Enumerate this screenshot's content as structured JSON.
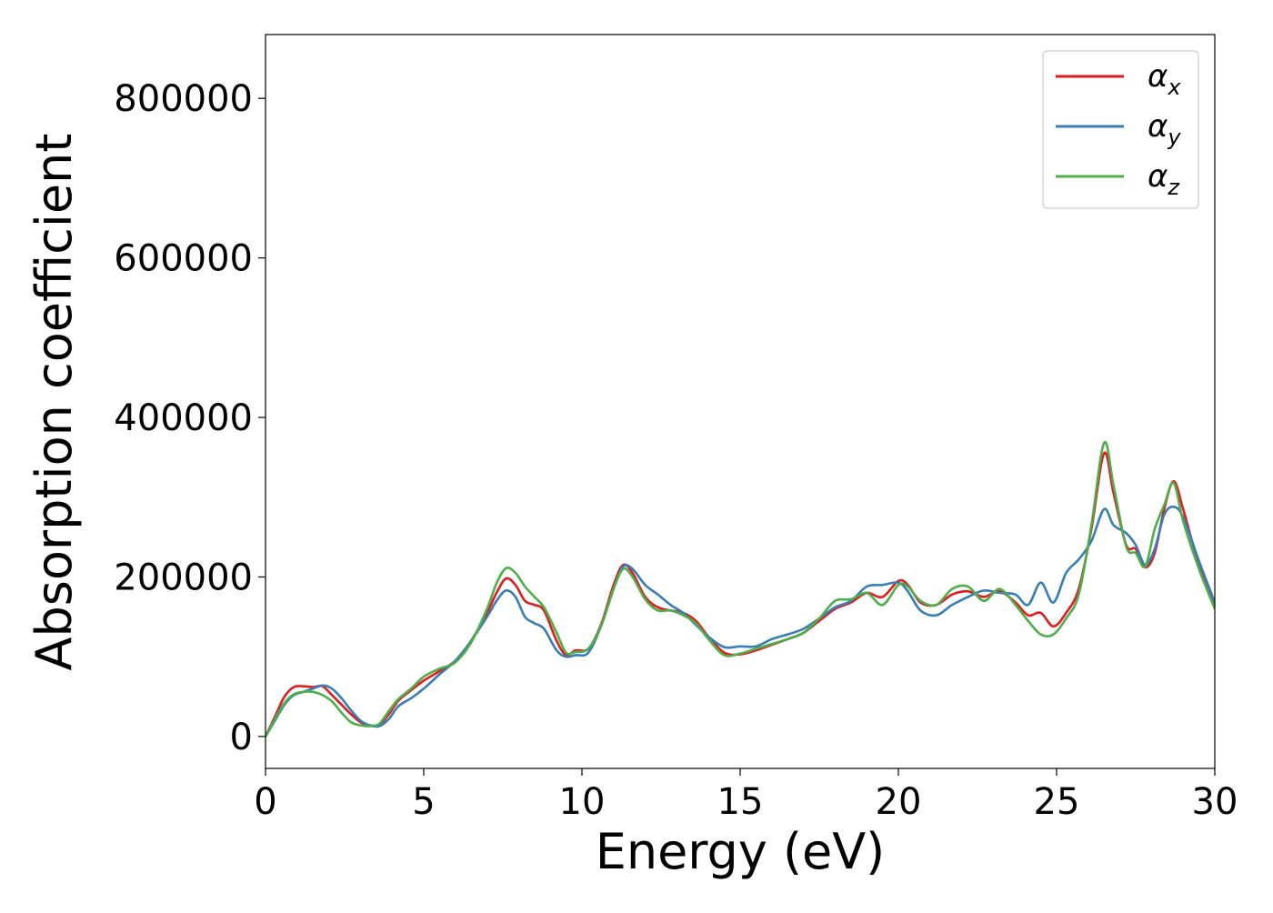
{
  "chart_data": {
    "type": "line",
    "title": "",
    "xlabel": "Energy (eV)",
    "ylabel": "Absorption coefficient",
    "xlim": [
      0,
      30
    ],
    "ylim": [
      -40000,
      880000
    ],
    "xticks": [
      0,
      5,
      10,
      15,
      20,
      25,
      30
    ],
    "xtick_labels": [
      "0",
      "5",
      "10",
      "15",
      "20",
      "25",
      "30"
    ],
    "yticks": [
      0,
      200000,
      400000,
      600000,
      800000
    ],
    "ytick_labels": [
      "0",
      "200000",
      "400000",
      "600000",
      "800000"
    ],
    "grid": false,
    "legend_position": "top-right",
    "series": [
      {
        "name": "αx",
        "symbol": "α",
        "subscript": "x",
        "color": "#e41a1c",
        "points": [
          [
            0,
            0
          ],
          [
            0.3,
            25000
          ],
          [
            0.6,
            50000
          ],
          [
            0.9,
            62000
          ],
          [
            1.2,
            63000
          ],
          [
            1.5,
            62000
          ],
          [
            1.8,
            63000
          ],
          [
            2.1,
            52000
          ],
          [
            2.4,
            40000
          ],
          [
            2.7,
            28000
          ],
          [
            3.0,
            18000
          ],
          [
            3.3,
            14000
          ],
          [
            3.6,
            15000
          ],
          [
            3.9,
            28000
          ],
          [
            4.2,
            45000
          ],
          [
            4.6,
            58000
          ],
          [
            5.0,
            70000
          ],
          [
            5.5,
            82000
          ],
          [
            6.0,
            95000
          ],
          [
            6.5,
            120000
          ],
          [
            7.0,
            155000
          ],
          [
            7.3,
            180000
          ],
          [
            7.6,
            198000
          ],
          [
            7.9,
            190000
          ],
          [
            8.2,
            170000
          ],
          [
            8.5,
            165000
          ],
          [
            8.8,
            158000
          ],
          [
            9.2,
            120000
          ],
          [
            9.5,
            102000
          ],
          [
            9.8,
            108000
          ],
          [
            10.2,
            110000
          ],
          [
            10.6,
            140000
          ],
          [
            11.0,
            190000
          ],
          [
            11.3,
            215000
          ],
          [
            11.6,
            205000
          ],
          [
            12.0,
            175000
          ],
          [
            12.4,
            162000
          ],
          [
            12.8,
            158000
          ],
          [
            13.2,
            155000
          ],
          [
            13.6,
            145000
          ],
          [
            14.0,
            125000
          ],
          [
            14.5,
            105000
          ],
          [
            15.0,
            103000
          ],
          [
            15.5,
            108000
          ],
          [
            16.0,
            115000
          ],
          [
            16.5,
            122000
          ],
          [
            17.0,
            130000
          ],
          [
            17.5,
            145000
          ],
          [
            18.0,
            160000
          ],
          [
            18.5,
            168000
          ],
          [
            19.0,
            180000
          ],
          [
            19.5,
            175000
          ],
          [
            20.0,
            195000
          ],
          [
            20.3,
            190000
          ],
          [
            20.7,
            168000
          ],
          [
            21.2,
            165000
          ],
          [
            21.7,
            178000
          ],
          [
            22.2,
            182000
          ],
          [
            22.7,
            175000
          ],
          [
            23.2,
            182000
          ],
          [
            23.7,
            168000
          ],
          [
            24.1,
            152000
          ],
          [
            24.5,
            155000
          ],
          [
            24.9,
            138000
          ],
          [
            25.3,
            155000
          ],
          [
            25.7,
            185000
          ],
          [
            26.1,
            260000
          ],
          [
            26.5,
            355000
          ],
          [
            26.8,
            305000
          ],
          [
            27.2,
            240000
          ],
          [
            27.5,
            235000
          ],
          [
            27.8,
            212000
          ],
          [
            28.1,
            230000
          ],
          [
            28.4,
            285000
          ],
          [
            28.7,
            320000
          ],
          [
            29.0,
            285000
          ],
          [
            29.5,
            215000
          ],
          [
            30.0,
            165000
          ]
        ]
      },
      {
        "name": "αy",
        "symbol": "α",
        "subscript": "y",
        "color": "#377eb8",
        "points": [
          [
            0,
            0
          ],
          [
            0.3,
            20000
          ],
          [
            0.6,
            40000
          ],
          [
            0.9,
            52000
          ],
          [
            1.2,
            56000
          ],
          [
            1.5,
            60000
          ],
          [
            1.8,
            64000
          ],
          [
            2.1,
            60000
          ],
          [
            2.4,
            48000
          ],
          [
            2.7,
            33000
          ],
          [
            3.0,
            20000
          ],
          [
            3.3,
            14000
          ],
          [
            3.6,
            13000
          ],
          [
            3.9,
            22000
          ],
          [
            4.2,
            38000
          ],
          [
            4.6,
            48000
          ],
          [
            5.0,
            60000
          ],
          [
            5.5,
            78000
          ],
          [
            6.0,
            95000
          ],
          [
            6.5,
            120000
          ],
          [
            7.0,
            150000
          ],
          [
            7.3,
            170000
          ],
          [
            7.6,
            183000
          ],
          [
            7.9,
            175000
          ],
          [
            8.2,
            150000
          ],
          [
            8.5,
            142000
          ],
          [
            8.8,
            135000
          ],
          [
            9.2,
            108000
          ],
          [
            9.5,
            100000
          ],
          [
            9.8,
            102000
          ],
          [
            10.2,
            105000
          ],
          [
            10.6,
            138000
          ],
          [
            11.0,
            185000
          ],
          [
            11.3,
            213000
          ],
          [
            11.6,
            210000
          ],
          [
            12.0,
            190000
          ],
          [
            12.4,
            178000
          ],
          [
            12.8,
            165000
          ],
          [
            13.2,
            155000
          ],
          [
            13.6,
            140000
          ],
          [
            14.0,
            125000
          ],
          [
            14.5,
            112000
          ],
          [
            15.0,
            113000
          ],
          [
            15.5,
            113000
          ],
          [
            16.0,
            122000
          ],
          [
            16.5,
            128000
          ],
          [
            17.0,
            135000
          ],
          [
            17.5,
            148000
          ],
          [
            18.0,
            162000
          ],
          [
            18.5,
            170000
          ],
          [
            19.0,
            188000
          ],
          [
            19.5,
            190000
          ],
          [
            20.0,
            193000
          ],
          [
            20.3,
            182000
          ],
          [
            20.7,
            158000
          ],
          [
            21.2,
            152000
          ],
          [
            21.7,
            165000
          ],
          [
            22.2,
            175000
          ],
          [
            22.7,
            183000
          ],
          [
            23.2,
            180000
          ],
          [
            23.7,
            178000
          ],
          [
            24.1,
            165000
          ],
          [
            24.5,
            193000
          ],
          [
            24.9,
            168000
          ],
          [
            25.3,
            205000
          ],
          [
            25.7,
            222000
          ],
          [
            26.1,
            245000
          ],
          [
            26.5,
            285000
          ],
          [
            26.8,
            265000
          ],
          [
            27.2,
            255000
          ],
          [
            27.5,
            240000
          ],
          [
            27.8,
            215000
          ],
          [
            28.1,
            235000
          ],
          [
            28.4,
            278000
          ],
          [
            28.7,
            288000
          ],
          [
            29.0,
            275000
          ],
          [
            29.5,
            220000
          ],
          [
            30.0,
            168000
          ]
        ]
      },
      {
        "name": "αz",
        "symbol": "α",
        "subscript": "z",
        "color": "#4daf4a",
        "points": [
          [
            0,
            0
          ],
          [
            0.3,
            22000
          ],
          [
            0.6,
            42000
          ],
          [
            0.9,
            53000
          ],
          [
            1.2,
            56000
          ],
          [
            1.5,
            56000
          ],
          [
            1.8,
            52000
          ],
          [
            2.1,
            44000
          ],
          [
            2.4,
            30000
          ],
          [
            2.7,
            18000
          ],
          [
            3.0,
            14000
          ],
          [
            3.3,
            13000
          ],
          [
            3.6,
            16000
          ],
          [
            3.9,
            32000
          ],
          [
            4.2,
            47000
          ],
          [
            4.6,
            60000
          ],
          [
            5.0,
            75000
          ],
          [
            5.5,
            85000
          ],
          [
            6.0,
            93000
          ],
          [
            6.5,
            118000
          ],
          [
            7.0,
            160000
          ],
          [
            7.3,
            192000
          ],
          [
            7.6,
            211000
          ],
          [
            7.9,
            205000
          ],
          [
            8.2,
            188000
          ],
          [
            8.5,
            175000
          ],
          [
            8.8,
            162000
          ],
          [
            9.2,
            130000
          ],
          [
            9.5,
            105000
          ],
          [
            9.8,
            106000
          ],
          [
            10.2,
            110000
          ],
          [
            10.6,
            138000
          ],
          [
            11.0,
            185000
          ],
          [
            11.3,
            210000
          ],
          [
            11.6,
            200000
          ],
          [
            12.0,
            172000
          ],
          [
            12.4,
            158000
          ],
          [
            12.8,
            158000
          ],
          [
            13.2,
            152000
          ],
          [
            13.6,
            142000
          ],
          [
            14.0,
            122000
          ],
          [
            14.5,
            102000
          ],
          [
            15.0,
            104000
          ],
          [
            15.5,
            110000
          ],
          [
            16.0,
            116000
          ],
          [
            16.5,
            122000
          ],
          [
            17.0,
            130000
          ],
          [
            17.5,
            148000
          ],
          [
            18.0,
            170000
          ],
          [
            18.5,
            172000
          ],
          [
            19.0,
            180000
          ],
          [
            19.5,
            165000
          ],
          [
            20.0,
            190000
          ],
          [
            20.3,
            188000
          ],
          [
            20.7,
            170000
          ],
          [
            21.2,
            165000
          ],
          [
            21.7,
            185000
          ],
          [
            22.2,
            188000
          ],
          [
            22.7,
            170000
          ],
          [
            23.2,
            185000
          ],
          [
            23.7,
            165000
          ],
          [
            24.1,
            145000
          ],
          [
            24.5,
            128000
          ],
          [
            24.9,
            128000
          ],
          [
            25.3,
            148000
          ],
          [
            25.7,
            178000
          ],
          [
            26.1,
            265000
          ],
          [
            26.5,
            368000
          ],
          [
            26.8,
            315000
          ],
          [
            27.2,
            238000
          ],
          [
            27.5,
            230000
          ],
          [
            27.8,
            213000
          ],
          [
            28.1,
            260000
          ],
          [
            28.4,
            290000
          ],
          [
            28.7,
            318000
          ],
          [
            29.0,
            270000
          ],
          [
            29.5,
            210000
          ],
          [
            30.0,
            160000
          ]
        ]
      }
    ]
  }
}
